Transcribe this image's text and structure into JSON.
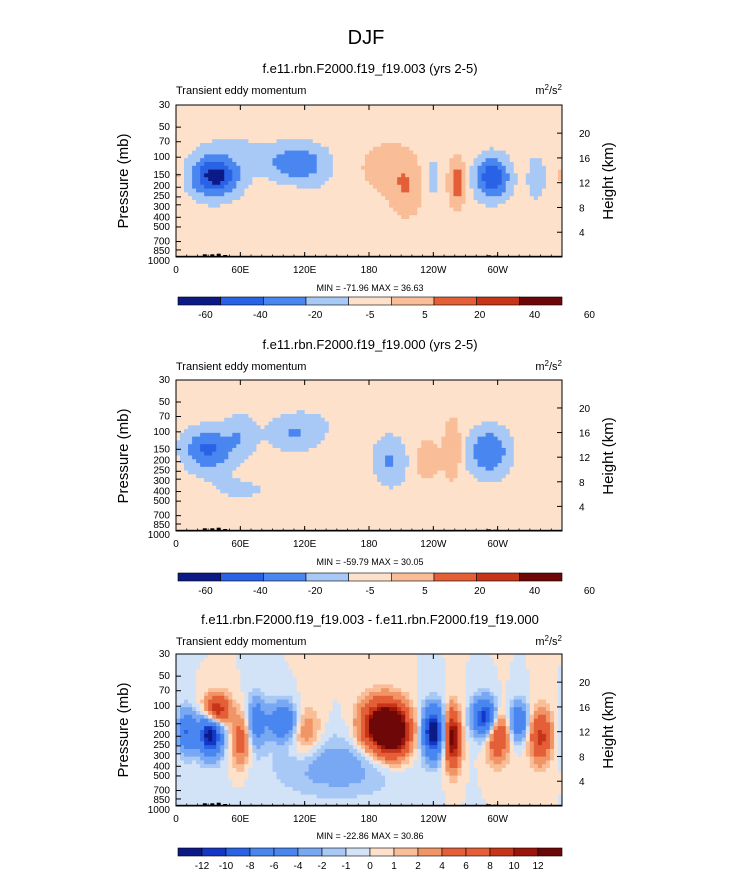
{
  "figure": {
    "main_title": "DJF"
  },
  "colors": {
    "panel_palette": [
      "#0b1a87",
      "#1537c6",
      "#2a62e6",
      "#4a86f0",
      "#78a8f3",
      "#a8c8f5",
      "#d2e2f7",
      "#fde1cb",
      "#f9bd97",
      "#f19466",
      "#e45f37",
      "#c73518",
      "#9c150a",
      "#6e0808"
    ],
    "land": "#000000"
  },
  "chart_data": [
    {
      "type": "heatmap",
      "title": "f.e11.rbn.F2000.f19_f19.003 (yrs 2-5)",
      "left_string": "Transient eddy momentum",
      "units": "m²/s²",
      "ylabel": "Pressure (mb)",
      "ylabel_right": "Height (km)",
      "x_ticks": [
        "0",
        "60E",
        "120E",
        "180",
        "120W",
        "60W"
      ],
      "y_ticks": [
        "30",
        "50",
        "70",
        "100",
        "150",
        "200",
        "250",
        "300",
        "400",
        "500",
        "700",
        "850",
        "1000"
      ],
      "y_ticks_right": [
        "20",
        "16",
        "12",
        "8",
        "4"
      ],
      "stats": "MIN = -71.96  MAX = 36.63",
      "colorbar_labels": [
        "-60",
        "-40",
        "-20",
        "-5",
        "5",
        "20",
        "40",
        "60"
      ],
      "features": [
        {
          "lon": 36,
          "p": 155,
          "value": -70,
          "sx": 14,
          "sy": 0.3
        },
        {
          "lon": 110,
          "p": 115,
          "value": -35,
          "sx": 16,
          "sy": 0.25
        },
        {
          "lon": 130,
          "p": 130,
          "value": -8,
          "sx": 12,
          "sy": 0.4
        },
        {
          "lon": 200,
          "p": 130,
          "value": 14,
          "sx": 18,
          "sy": 0.4
        },
        {
          "lon": 215,
          "p": 220,
          "value": 16,
          "sx": 10,
          "sy": 0.4
        },
        {
          "lon": 238,
          "p": 160,
          "value": -10,
          "sx": 7,
          "sy": 0.4
        },
        {
          "lon": 262,
          "p": 180,
          "value": 32,
          "sx": 5,
          "sy": 0.35
        },
        {
          "lon": 295,
          "p": 160,
          "value": -60,
          "sx": 10,
          "sy": 0.3
        },
        {
          "lon": 336,
          "p": 160,
          "value": -18,
          "sx": 5,
          "sy": 0.3
        },
        {
          "lon": 0,
          "p": 150,
          "value": 10,
          "sx": 4,
          "sy": 0.2
        },
        {
          "lon": 60,
          "p": 90,
          "value": -6,
          "sx": 28,
          "sy": 0.4
        }
      ]
    },
    {
      "type": "heatmap",
      "title": "f.e11.rbn.F2000.f19_f19.000 (yrs 2-5)",
      "left_string": "Transient eddy momentum",
      "units": "m²/s²",
      "ylabel": "Pressure (mb)",
      "ylabel_right": "Height (km)",
      "x_ticks": [
        "0",
        "60E",
        "120E",
        "180",
        "120W",
        "60W"
      ],
      "y_ticks": [
        "30",
        "50",
        "70",
        "100",
        "150",
        "200",
        "250",
        "300",
        "400",
        "500",
        "700",
        "850",
        "1000"
      ],
      "y_ticks_right": [
        "20",
        "16",
        "12",
        "8",
        "4"
      ],
      "stats": "MIN = -59.79  MAX = 30.05",
      "colorbar_labels": [
        "-60",
        "-40",
        "-20",
        "-5",
        "5",
        "20",
        "40",
        "60"
      ],
      "features": [
        {
          "lon": 30,
          "p": 150,
          "value": -45,
          "sx": 14,
          "sy": 0.3
        },
        {
          "lon": 60,
          "p": 110,
          "value": -18,
          "sx": 10,
          "sy": 0.3
        },
        {
          "lon": 110,
          "p": 105,
          "value": -20,
          "sx": 15,
          "sy": 0.25
        },
        {
          "lon": 200,
          "p": 200,
          "value": -22,
          "sx": 10,
          "sy": 0.35
        },
        {
          "lon": 235,
          "p": 190,
          "value": 12,
          "sx": 9,
          "sy": 0.35
        },
        {
          "lon": 258,
          "p": 150,
          "value": 20,
          "sx": 5,
          "sy": 0.45
        },
        {
          "lon": 292,
          "p": 160,
          "value": -40,
          "sx": 12,
          "sy": 0.35
        },
        {
          "lon": 330,
          "p": 170,
          "value": 4,
          "sx": 10,
          "sy": 0.4
        },
        {
          "lon": 150,
          "p": 70,
          "value": -4,
          "sx": 40,
          "sy": 0.4
        },
        {
          "lon": 60,
          "p": 380,
          "value": -6,
          "sx": 30,
          "sy": 0.3
        }
      ]
    },
    {
      "type": "heatmap",
      "title": "f.e11.rbn.F2000.f19_f19.003 - f.e11.rbn.F2000.f19_f19.000",
      "left_string": "Transient eddy momentum",
      "units": "m²/s²",
      "ylabel": "Pressure (mb)",
      "ylabel_right": "Height (km)",
      "x_ticks": [
        "0",
        "60E",
        "120E",
        "180",
        "120W",
        "60W"
      ],
      "y_ticks": [
        "30",
        "50",
        "70",
        "100",
        "150",
        "200",
        "250",
        "300",
        "400",
        "500",
        "700",
        "850",
        "1000"
      ],
      "y_ticks_right": [
        "20",
        "16",
        "12",
        "8",
        "4"
      ],
      "stats": "MIN = -22.86  MAX = 30.86",
      "colorbar_labels": [
        "-12",
        "-10",
        "-8",
        "-6",
        "-4",
        "-2",
        "-1",
        "0",
        "1",
        "2",
        "4",
        "6",
        "8",
        "10",
        "12"
      ],
      "features": [
        {
          "lon": 38,
          "p": 110,
          "value": 12,
          "sx": 8,
          "sy": 0.25
        },
        {
          "lon": 32,
          "p": 190,
          "value": -14,
          "sx": 8,
          "sy": 0.35
        },
        {
          "lon": 10,
          "p": 180,
          "value": -8,
          "sx": 6,
          "sy": 0.35
        },
        {
          "lon": 60,
          "p": 220,
          "value": 6,
          "sx": 6,
          "sy": 0.4
        },
        {
          "lon": 75,
          "p": 140,
          "value": -6,
          "sx": 6,
          "sy": 0.4
        },
        {
          "lon": 100,
          "p": 140,
          "value": -8,
          "sx": 10,
          "sy": 0.3
        },
        {
          "lon": 120,
          "p": 180,
          "value": 4,
          "sx": 10,
          "sy": 0.4
        },
        {
          "lon": 190,
          "p": 160,
          "value": 16,
          "sx": 12,
          "sy": 0.4
        },
        {
          "lon": 205,
          "p": 180,
          "value": 14,
          "sx": 10,
          "sy": 0.4
        },
        {
          "lon": 240,
          "p": 180,
          "value": -14,
          "sx": 7,
          "sy": 0.4
        },
        {
          "lon": 258,
          "p": 210,
          "value": 14,
          "sx": 5,
          "sy": 0.45
        },
        {
          "lon": 288,
          "p": 130,
          "value": -12,
          "sx": 8,
          "sy": 0.3
        },
        {
          "lon": 300,
          "p": 200,
          "value": 8,
          "sx": 7,
          "sy": 0.4
        },
        {
          "lon": 320,
          "p": 140,
          "value": -8,
          "sx": 6,
          "sy": 0.3
        },
        {
          "lon": 340,
          "p": 200,
          "value": 9,
          "sx": 7,
          "sy": 0.4
        },
        {
          "lon": 150,
          "p": 400,
          "value": -3,
          "sx": 40,
          "sy": 0.5
        }
      ]
    }
  ]
}
